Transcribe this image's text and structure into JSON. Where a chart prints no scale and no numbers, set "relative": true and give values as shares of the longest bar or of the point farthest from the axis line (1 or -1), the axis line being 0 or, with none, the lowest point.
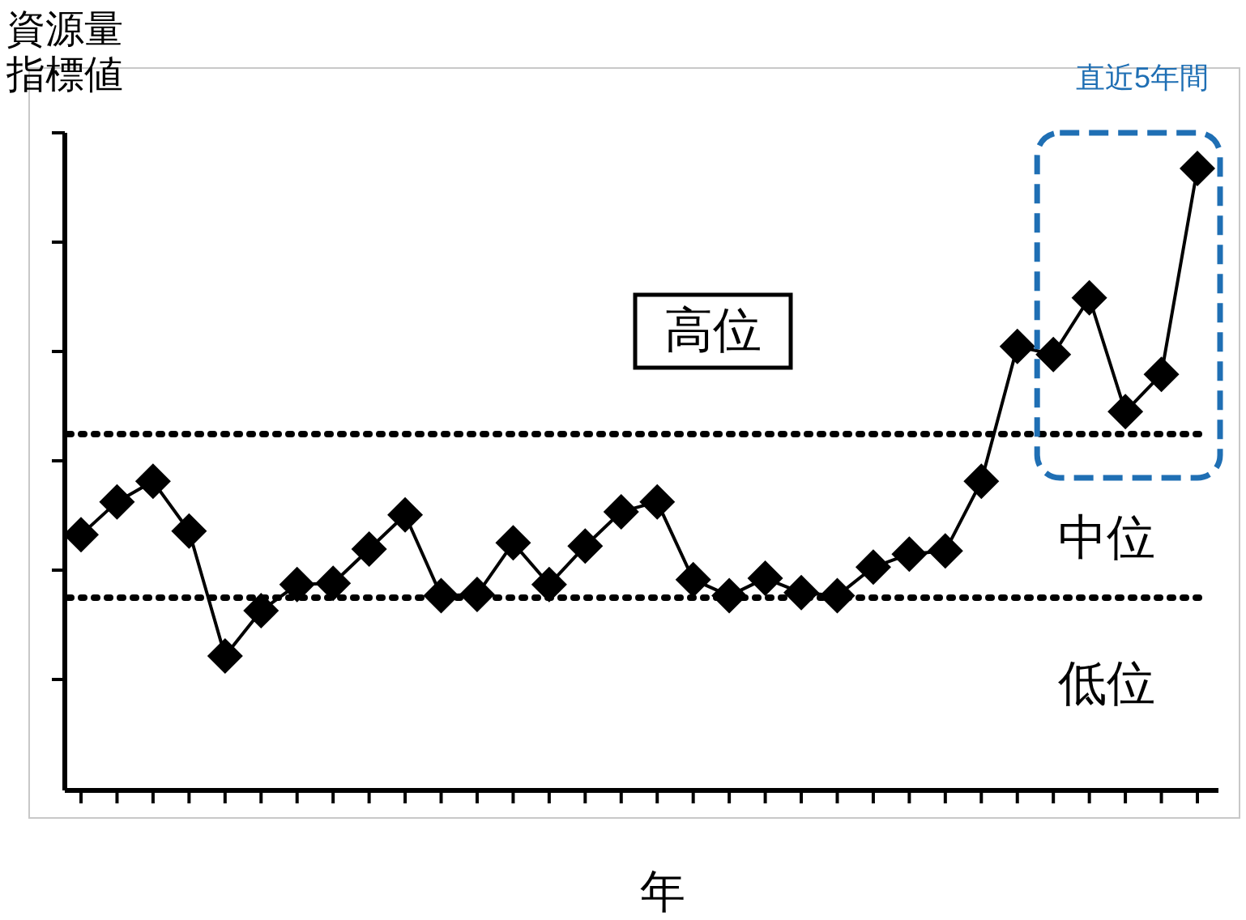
{
  "chart_data": {
    "type": "line",
    "relative": true,
    "xlabel": "年",
    "ylabel": "資源量指標値",
    "categories": [
      null,
      null,
      null,
      null,
      null,
      null,
      null,
      null,
      null,
      null,
      null,
      null,
      null,
      null,
      null,
      null,
      null,
      null,
      null,
      null,
      null,
      null,
      null,
      null,
      null,
      null,
      null,
      null,
      null,
      null,
      null,
      null
    ],
    "series": [
      {
        "color": "#000000",
        "values": [
          0.411,
          0.464,
          0.497,
          0.417,
          0.216,
          0.289,
          0.331,
          0.333,
          0.388,
          0.443,
          0.313,
          0.315,
          0.398,
          0.331,
          0.393,
          0.448,
          0.464,
          0.339,
          0.313,
          0.341,
          0.318,
          0.313,
          0.359,
          0.38,
          0.385,
          0.497,
          0.714,
          0.701,
          0.792,
          0.609,
          0.669,
          1
        ]
      }
    ],
    "ref_lines": [
      {
        "axis": "y",
        "value": 0.573,
        "color": "#000000",
        "line_style": "dotted"
      },
      {
        "axis": "y",
        "value": 0.31,
        "color": "#000000",
        "line_style": "dotted"
      }
    ],
    "annotations": [
      "高位",
      "中位",
      "低位",
      "直近5年間"
    ],
    "marker": "diamond",
    "line_style": "solid"
  }
}
